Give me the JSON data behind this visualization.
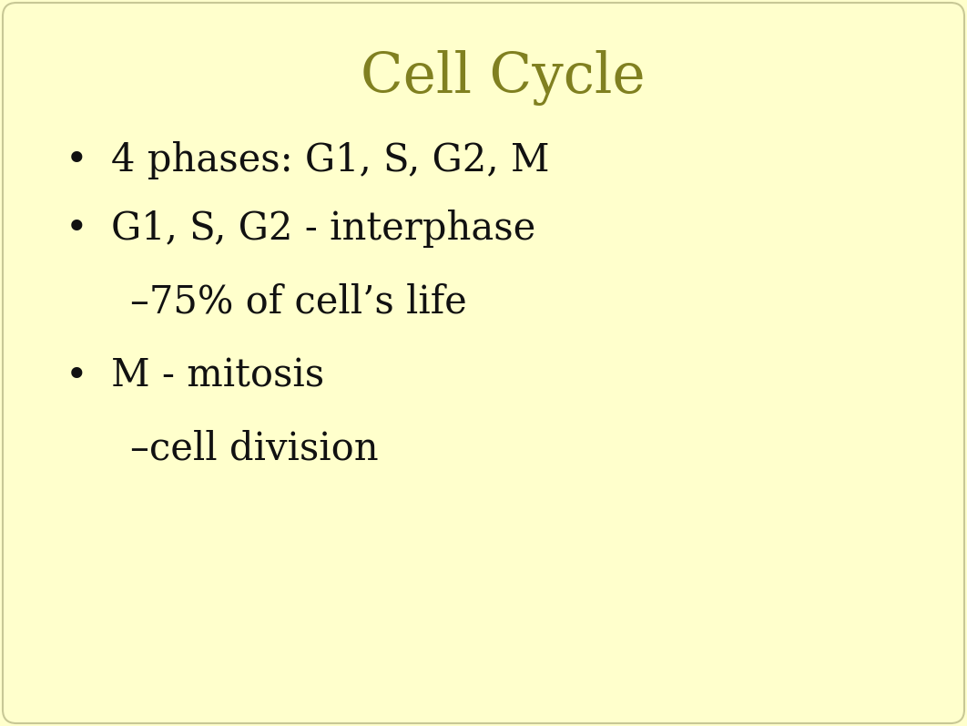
{
  "background_color": "#ffffcc",
  "border_color": "#c8c896",
  "title": "Cell Cycle",
  "title_color": "#808020",
  "title_fontsize": 44,
  "title_font": "DejaVu Serif",
  "body_color": "#111111",
  "body_fontsize": 30,
  "body_font": "DejaVu Serif",
  "bullet_char": "•",
  "items": [
    {
      "type": "bullet",
      "text": "4 phases: G1, S, G2, M"
    },
    {
      "type": "bullet",
      "text": "G1, S, G2 - interphase"
    },
    {
      "type": "sub",
      "text": "–75% of cell’s life"
    },
    {
      "type": "bullet",
      "text": "M - mitosis"
    },
    {
      "type": "sub",
      "text": "–cell division"
    }
  ],
  "figwidth": 10.62,
  "figheight": 7.97,
  "dpi": 100
}
